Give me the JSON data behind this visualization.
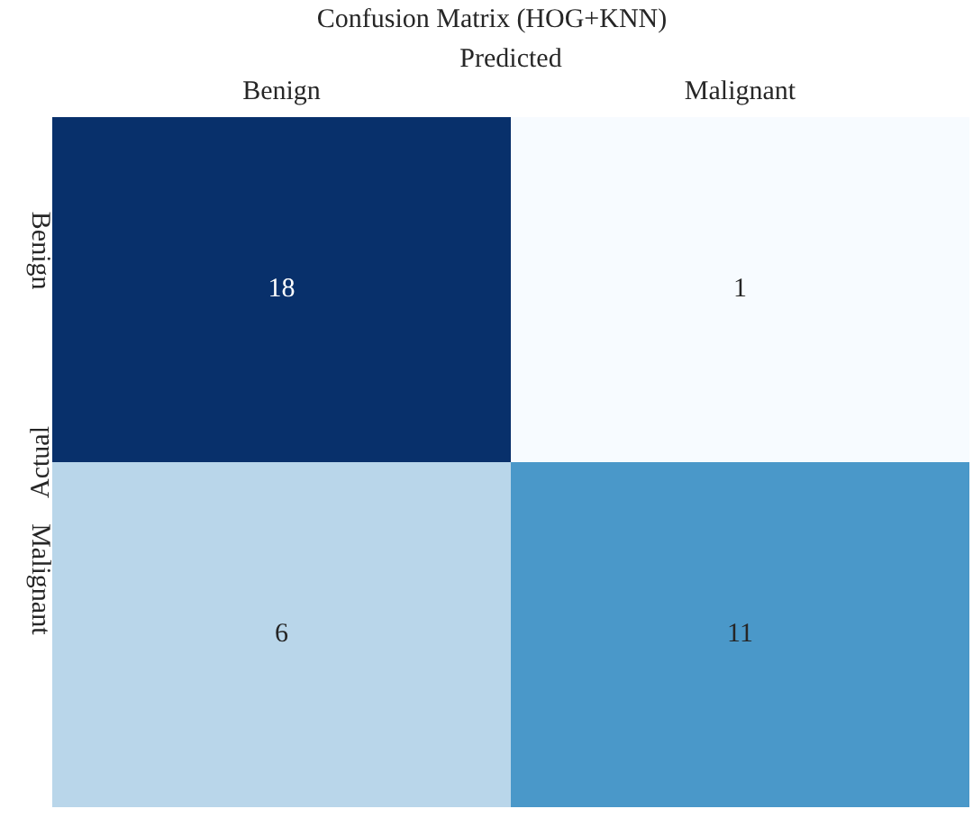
{
  "chart_data": {
    "type": "heatmap",
    "title": "Confusion Matrix (HOG+KNN)",
    "xlabel": "Predicted",
    "ylabel": "Actual",
    "categories": [
      "Benign",
      "Malignant"
    ],
    "y_categories": [
      "Benign",
      "Malignant"
    ],
    "cells": [
      [
        18,
        1
      ],
      [
        6,
        11
      ]
    ],
    "colors": [
      "#08306b",
      "#f7fbff",
      "#b9d6ea",
      "#4a98c9"
    ],
    "data_labels": true
  }
}
